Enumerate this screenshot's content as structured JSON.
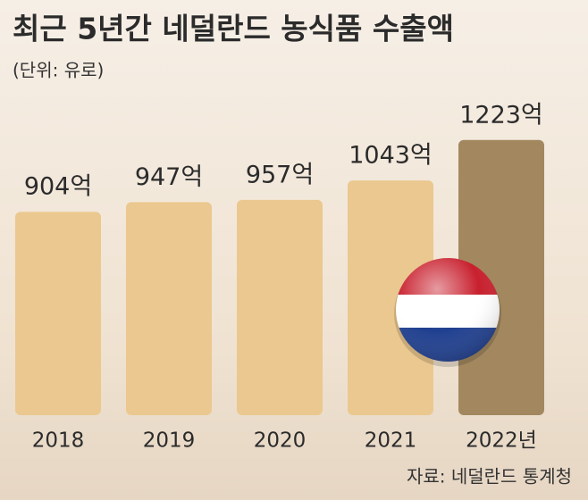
{
  "chart_data": {
    "type": "bar",
    "title": "최근 5년간 네덜란드 농식품 수출액",
    "subtitle": "(단위: 유로)",
    "source": "자료: 네덜란드 통계청",
    "categories": [
      "2018",
      "2019",
      "2020",
      "2021",
      "2022년"
    ],
    "values": [
      904,
      947,
      957,
      1043,
      1223
    ],
    "value_labels": [
      "904억",
      "947억",
      "957억",
      "1043억",
      "1223억"
    ],
    "colors": [
      "#ebc88f",
      "#ebc88f",
      "#ebc88f",
      "#ebc88f",
      "#a3885f"
    ]
  }
}
